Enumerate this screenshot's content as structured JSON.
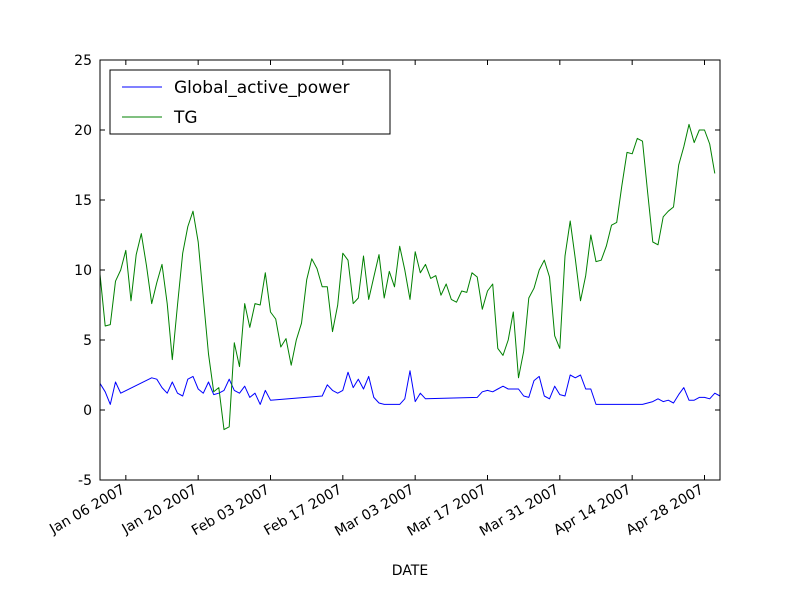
{
  "chart_data": {
    "type": "line",
    "title": "",
    "xlabel": "DATE",
    "ylabel": "",
    "xlim": [
      "2007-01-01",
      "2007-05-01"
    ],
    "ylim": [
      -5,
      25
    ],
    "y_ticks": [
      -5,
      0,
      5,
      10,
      15,
      20,
      25
    ],
    "x_ticks": [
      {
        "date": "2007-01-06",
        "label": "Jan 06 2007"
      },
      {
        "date": "2007-01-20",
        "label": "Jan 20 2007"
      },
      {
        "date": "2007-02-03",
        "label": "Feb 03 2007"
      },
      {
        "date": "2007-02-17",
        "label": "Feb 17 2007"
      },
      {
        "date": "2007-03-03",
        "label": "Mar 03 2007"
      },
      {
        "date": "2007-03-17",
        "label": "Mar 17 2007"
      },
      {
        "date": "2007-03-31",
        "label": "Mar 31 2007"
      },
      {
        "date": "2007-04-14",
        "label": "Apr 14 2007"
      },
      {
        "date": "2007-04-28",
        "label": "Apr 28 2007"
      }
    ],
    "grid": false,
    "legend_position": "top-left",
    "series": [
      {
        "name": "Global_active_power",
        "color": "#0000ff",
        "points": [
          [
            "2007-01-01",
            1.9
          ],
          [
            "2007-01-02",
            1.3
          ],
          [
            "2007-01-03",
            0.4
          ],
          [
            "2007-01-04",
            2.0
          ],
          [
            "2007-01-05",
            1.2
          ],
          [
            "2007-01-11",
            2.3
          ],
          [
            "2007-01-12",
            2.2
          ],
          [
            "2007-01-13",
            1.6
          ],
          [
            "2007-01-14",
            1.2
          ],
          [
            "2007-01-15",
            2.0
          ],
          [
            "2007-01-16",
            1.2
          ],
          [
            "2007-01-17",
            1.0
          ],
          [
            "2007-01-18",
            2.2
          ],
          [
            "2007-01-19",
            2.4
          ],
          [
            "2007-01-20",
            1.5
          ],
          [
            "2007-01-21",
            1.2
          ],
          [
            "2007-01-22",
            2.0
          ],
          [
            "2007-01-23",
            1.1
          ],
          [
            "2007-01-24",
            1.2
          ],
          [
            "2007-01-25",
            1.4
          ],
          [
            "2007-01-26",
            2.2
          ],
          [
            "2007-01-27",
            1.4
          ],
          [
            "2007-01-28",
            1.2
          ],
          [
            "2007-01-29",
            1.7
          ],
          [
            "2007-01-30",
            0.9
          ],
          [
            "2007-01-31",
            1.2
          ],
          [
            "2007-02-01",
            0.4
          ],
          [
            "2007-02-02",
            1.4
          ],
          [
            "2007-02-03",
            0.7
          ],
          [
            "2007-02-13",
            1.0
          ],
          [
            "2007-02-14",
            1.8
          ],
          [
            "2007-02-15",
            1.4
          ],
          [
            "2007-02-16",
            1.2
          ],
          [
            "2007-02-17",
            1.4
          ],
          [
            "2007-02-18",
            2.7
          ],
          [
            "2007-02-19",
            1.6
          ],
          [
            "2007-02-20",
            2.2
          ],
          [
            "2007-02-21",
            1.5
          ],
          [
            "2007-02-22",
            2.4
          ],
          [
            "2007-02-23",
            0.9
          ],
          [
            "2007-02-24",
            0.5
          ],
          [
            "2007-02-25",
            0.4
          ],
          [
            "2007-02-26",
            0.4
          ],
          [
            "2007-02-27",
            0.4
          ],
          [
            "2007-02-28",
            0.4
          ],
          [
            "2007-03-01",
            0.8
          ],
          [
            "2007-03-02",
            2.8
          ],
          [
            "2007-03-03",
            0.6
          ],
          [
            "2007-03-04",
            1.2
          ],
          [
            "2007-03-05",
            0.8
          ],
          [
            "2007-03-15",
            0.9
          ],
          [
            "2007-03-16",
            1.3
          ],
          [
            "2007-03-17",
            1.4
          ],
          [
            "2007-03-18",
            1.3
          ],
          [
            "2007-03-19",
            1.5
          ],
          [
            "2007-03-20",
            1.7
          ],
          [
            "2007-03-21",
            1.5
          ],
          [
            "2007-03-22",
            1.5
          ],
          [
            "2007-03-23",
            1.5
          ],
          [
            "2007-03-24",
            1.0
          ],
          [
            "2007-03-25",
            0.9
          ],
          [
            "2007-03-26",
            2.1
          ],
          [
            "2007-03-27",
            2.4
          ],
          [
            "2007-03-28",
            1.0
          ],
          [
            "2007-03-29",
            0.8
          ],
          [
            "2007-03-30",
            1.7
          ],
          [
            "2007-03-31",
            1.1
          ],
          [
            "2007-04-01",
            1.0
          ],
          [
            "2007-04-02",
            2.5
          ],
          [
            "2007-04-03",
            2.3
          ],
          [
            "2007-04-04",
            2.5
          ],
          [
            "2007-04-05",
            1.5
          ],
          [
            "2007-04-06",
            1.5
          ],
          [
            "2007-04-07",
            0.4
          ],
          [
            "2007-04-16",
            0.4
          ],
          [
            "2007-04-17",
            0.5
          ],
          [
            "2007-04-18",
            0.6
          ],
          [
            "2007-04-19",
            0.8
          ],
          [
            "2007-04-20",
            0.6
          ],
          [
            "2007-04-21",
            0.7
          ],
          [
            "2007-04-22",
            0.5
          ],
          [
            "2007-04-23",
            1.1
          ],
          [
            "2007-04-24",
            1.6
          ],
          [
            "2007-04-25",
            0.7
          ],
          [
            "2007-04-26",
            0.7
          ],
          [
            "2007-04-27",
            0.9
          ],
          [
            "2007-04-28",
            0.9
          ],
          [
            "2007-04-29",
            0.8
          ],
          [
            "2007-04-30",
            1.2
          ],
          [
            "2007-05-01",
            1.0
          ],
          [
            "2007-05-02",
            0.8
          ]
        ]
      },
      {
        "name": "TG",
        "color": "#008000",
        "points": [
          [
            "2007-01-01",
            9.7
          ],
          [
            "2007-01-02",
            6.0
          ],
          [
            "2007-01-03",
            6.1
          ],
          [
            "2007-01-04",
            9.2
          ],
          [
            "2007-01-05",
            10.0
          ],
          [
            "2007-01-06",
            11.4
          ],
          [
            "2007-01-07",
            7.8
          ],
          [
            "2007-01-08",
            11.1
          ],
          [
            "2007-01-09",
            12.6
          ],
          [
            "2007-01-10",
            10.3
          ],
          [
            "2007-01-11",
            7.6
          ],
          [
            "2007-01-12",
            9.1
          ],
          [
            "2007-01-13",
            10.4
          ],
          [
            "2007-01-14",
            7.6
          ],
          [
            "2007-01-15",
            3.6
          ],
          [
            "2007-01-16",
            7.5
          ],
          [
            "2007-01-17",
            11.2
          ],
          [
            "2007-01-18",
            13.1
          ],
          [
            "2007-01-19",
            14.2
          ],
          [
            "2007-01-20",
            12.0
          ],
          [
            "2007-01-21",
            8.0
          ],
          [
            "2007-01-22",
            4.0
          ],
          [
            "2007-01-23",
            1.3
          ],
          [
            "2007-01-24",
            1.6
          ],
          [
            "2007-01-25",
            -1.4
          ],
          [
            "2007-01-26",
            -1.2
          ],
          [
            "2007-01-27",
            4.8
          ],
          [
            "2007-01-28",
            3.1
          ],
          [
            "2007-01-29",
            7.6
          ],
          [
            "2007-01-30",
            5.9
          ],
          [
            "2007-01-31",
            7.6
          ],
          [
            "2007-02-01",
            7.5
          ],
          [
            "2007-02-02",
            9.8
          ],
          [
            "2007-02-03",
            7.0
          ],
          [
            "2007-02-04",
            6.5
          ],
          [
            "2007-02-05",
            4.5
          ],
          [
            "2007-02-06",
            5.1
          ],
          [
            "2007-02-07",
            3.2
          ],
          [
            "2007-02-08",
            5.0
          ],
          [
            "2007-02-09",
            6.2
          ],
          [
            "2007-02-10",
            9.3
          ],
          [
            "2007-02-11",
            10.8
          ],
          [
            "2007-02-12",
            10.1
          ],
          [
            "2007-02-13",
            8.8
          ],
          [
            "2007-02-14",
            8.8
          ],
          [
            "2007-02-15",
            5.6
          ],
          [
            "2007-02-16",
            7.5
          ],
          [
            "2007-02-17",
            11.2
          ],
          [
            "2007-02-18",
            10.7
          ],
          [
            "2007-02-19",
            7.6
          ],
          [
            "2007-02-20",
            8.0
          ],
          [
            "2007-02-21",
            11.0
          ],
          [
            "2007-02-22",
            7.9
          ],
          [
            "2007-02-23",
            9.5
          ],
          [
            "2007-02-24",
            11.1
          ],
          [
            "2007-02-25",
            8.0
          ],
          [
            "2007-02-26",
            9.9
          ],
          [
            "2007-02-27",
            8.8
          ],
          [
            "2007-02-28",
            11.7
          ],
          [
            "2007-03-01",
            10.0
          ],
          [
            "2007-03-02",
            7.9
          ],
          [
            "2007-03-03",
            11.3
          ],
          [
            "2007-03-04",
            9.8
          ],
          [
            "2007-03-05",
            10.4
          ],
          [
            "2007-03-06",
            9.4
          ],
          [
            "2007-03-07",
            9.6
          ],
          [
            "2007-03-08",
            8.2
          ],
          [
            "2007-03-09",
            9.0
          ],
          [
            "2007-03-10",
            7.9
          ],
          [
            "2007-03-11",
            7.7
          ],
          [
            "2007-03-12",
            8.5
          ],
          [
            "2007-03-13",
            8.4
          ],
          [
            "2007-03-14",
            9.8
          ],
          [
            "2007-03-15",
            9.5
          ],
          [
            "2007-03-16",
            7.2
          ],
          [
            "2007-03-17",
            8.5
          ],
          [
            "2007-03-18",
            9.0
          ],
          [
            "2007-03-19",
            4.4
          ],
          [
            "2007-03-20",
            3.9
          ],
          [
            "2007-03-21",
            5.0
          ],
          [
            "2007-03-22",
            7.0
          ],
          [
            "2007-03-23",
            2.3
          ],
          [
            "2007-03-24",
            4.2
          ],
          [
            "2007-03-25",
            8.0
          ],
          [
            "2007-03-26",
            8.7
          ],
          [
            "2007-03-27",
            10.0
          ],
          [
            "2007-03-28",
            10.7
          ],
          [
            "2007-03-29",
            9.5
          ],
          [
            "2007-03-30",
            5.3
          ],
          [
            "2007-03-31",
            4.4
          ],
          [
            "2007-04-01",
            11.0
          ],
          [
            "2007-04-02",
            13.5
          ],
          [
            "2007-04-03",
            10.8
          ],
          [
            "2007-04-04",
            7.8
          ],
          [
            "2007-04-05",
            9.6
          ],
          [
            "2007-04-06",
            12.5
          ],
          [
            "2007-04-07",
            10.6
          ],
          [
            "2007-04-08",
            10.7
          ],
          [
            "2007-04-09",
            11.7
          ],
          [
            "2007-04-10",
            13.2
          ],
          [
            "2007-04-11",
            13.4
          ],
          [
            "2007-04-12",
            16.0
          ],
          [
            "2007-04-13",
            18.4
          ],
          [
            "2007-04-14",
            18.3
          ],
          [
            "2007-04-15",
            19.4
          ],
          [
            "2007-04-16",
            19.2
          ],
          [
            "2007-04-17",
            15.5
          ],
          [
            "2007-04-18",
            12.0
          ],
          [
            "2007-04-19",
            11.8
          ],
          [
            "2007-04-20",
            13.8
          ],
          [
            "2007-04-21",
            14.2
          ],
          [
            "2007-04-22",
            14.5
          ],
          [
            "2007-04-23",
            17.5
          ],
          [
            "2007-04-24",
            18.8
          ],
          [
            "2007-04-25",
            20.4
          ],
          [
            "2007-04-26",
            19.1
          ],
          [
            "2007-04-27",
            20.0
          ],
          [
            "2007-04-28",
            20.0
          ],
          [
            "2007-04-29",
            19.0
          ],
          [
            "2007-04-30",
            16.9
          ]
        ]
      }
    ]
  }
}
